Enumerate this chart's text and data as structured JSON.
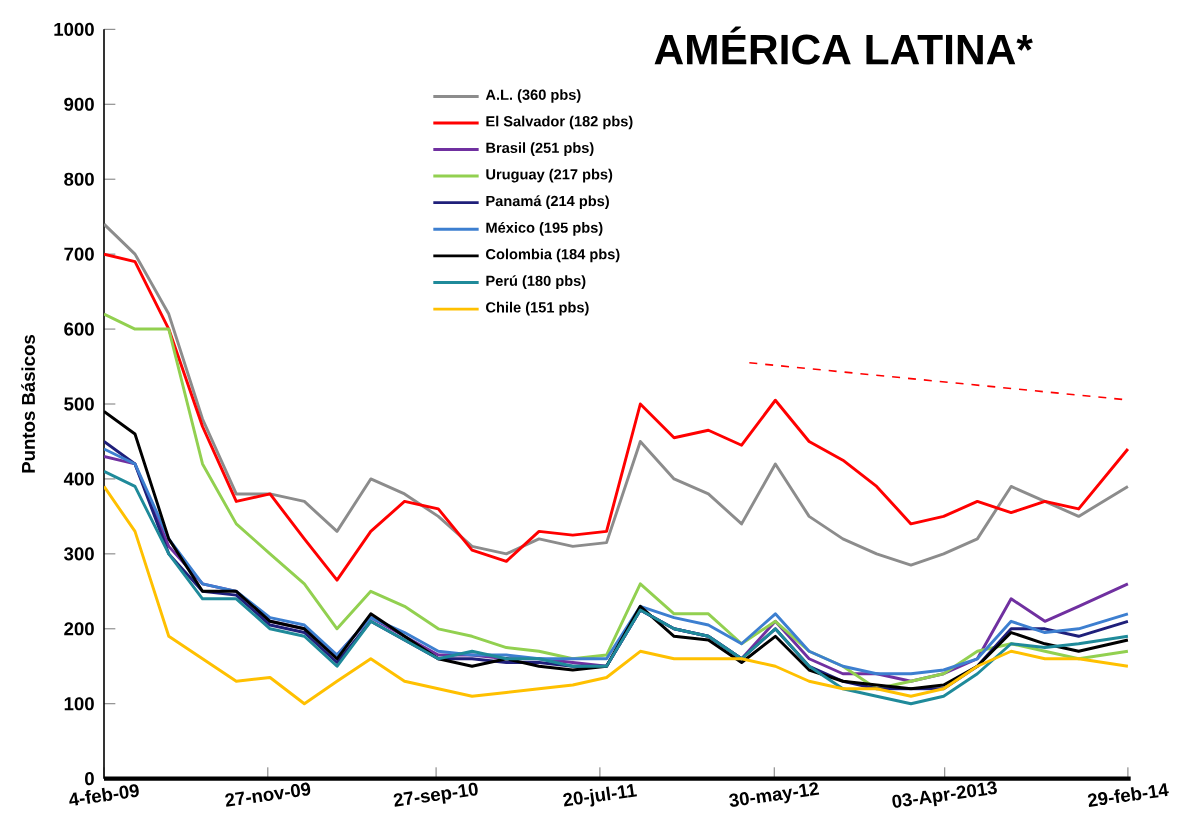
{
  "chart_data": {
    "type": "line",
    "title": "AMÉRICA LATINA*",
    "ylabel": "Puntos Básicos",
    "x": [
      "2009-02-04",
      "2009-04-01",
      "2009-06-01",
      "2009-08-01",
      "2009-10-01",
      "2009-12-01",
      "2010-02-01",
      "2010-04-01",
      "2010-06-01",
      "2010-08-01",
      "2010-10-01",
      "2010-12-01",
      "2011-02-01",
      "2011-04-01",
      "2011-06-01",
      "2011-08-01",
      "2011-10-01",
      "2011-12-01",
      "2012-02-01",
      "2012-04-01",
      "2012-06-01",
      "2012-08-01",
      "2012-10-01",
      "2012-12-01",
      "2013-02-01",
      "2013-04-01",
      "2013-06-01",
      "2013-08-01",
      "2013-10-01",
      "2013-12-01",
      "2014-02-28"
    ],
    "series": [
      {
        "name": "A.L. (360 pbs)",
        "color": "#8c8c8c",
        "values": [
          740,
          700,
          620,
          480,
          380,
          380,
          370,
          330,
          400,
          380,
          350,
          310,
          300,
          320,
          310,
          315,
          450,
          400,
          380,
          340,
          420,
          350,
          320,
          300,
          285,
          300,
          320,
          390,
          370,
          350,
          390
        ]
      },
      {
        "name": "El Salvador (182 pbs)",
        "color": "#ff0000",
        "values": [
          700,
          690,
          600,
          470,
          370,
          380,
          320,
          265,
          330,
          370,
          360,
          305,
          290,
          330,
          325,
          330,
          500,
          455,
          465,
          445,
          505,
          450,
          425,
          390,
          340,
          350,
          370,
          355,
          370,
          360,
          440
        ]
      },
      {
        "name": "Brasil (251 pbs)",
        "color": "#7030a0",
        "values": [
          430,
          420,
          310,
          260,
          250,
          210,
          200,
          165,
          215,
          190,
          165,
          165,
          160,
          160,
          155,
          150,
          225,
          200,
          190,
          160,
          210,
          160,
          140,
          140,
          130,
          140,
          160,
          240,
          210,
          230,
          260
        ]
      },
      {
        "name": "Uruguay (217 pbs)",
        "color": "#92d050",
        "values": [
          620,
          600,
          600,
          420,
          340,
          300,
          260,
          200,
          250,
          230,
          200,
          190,
          175,
          170,
          160,
          165,
          260,
          220,
          220,
          180,
          210,
          170,
          150,
          120,
          130,
          140,
          170,
          180,
          170,
          160,
          170
        ]
      },
      {
        "name": "Panamá (214 pbs)",
        "color": "#1f1f7a",
        "values": [
          450,
          420,
          300,
          250,
          245,
          205,
          195,
          155,
          210,
          185,
          160,
          160,
          155,
          155,
          150,
          150,
          225,
          200,
          190,
          160,
          200,
          150,
          130,
          120,
          120,
          120,
          150,
          200,
          200,
          190,
          210
        ]
      },
      {
        "name": "México (195 pbs)",
        "color": "#3d7fd0",
        "values": [
          440,
          420,
          320,
          260,
          250,
          215,
          205,
          165,
          215,
          195,
          170,
          165,
          165,
          160,
          160,
          160,
          230,
          215,
          205,
          180,
          220,
          170,
          150,
          140,
          140,
          145,
          160,
          210,
          195,
          200,
          220
        ]
      },
      {
        "name": "Colombia (184 pbs)",
        "color": "#000000",
        "values": [
          490,
          460,
          320,
          250,
          250,
          210,
          200,
          160,
          220,
          190,
          160,
          150,
          160,
          150,
          145,
          150,
          230,
          190,
          185,
          155,
          190,
          145,
          130,
          125,
          120,
          125,
          150,
          195,
          180,
          170,
          185
        ]
      },
      {
        "name": "Perú (180 pbs)",
        "color": "#1f8a9a",
        "values": [
          410,
          390,
          300,
          240,
          240,
          200,
          190,
          150,
          210,
          185,
          160,
          170,
          160,
          160,
          150,
          150,
          225,
          200,
          190,
          160,
          200,
          150,
          120,
          110,
          100,
          110,
          140,
          180,
          175,
          180,
          190
        ]
      },
      {
        "name": "Chile (151 pbs)",
        "color": "#ffc000",
        "values": [
          390,
          330,
          190,
          160,
          130,
          135,
          100,
          130,
          160,
          130,
          120,
          110,
          115,
          120,
          125,
          135,
          170,
          160,
          160,
          160,
          150,
          130,
          120,
          120,
          110,
          120,
          150,
          170,
          160,
          160,
          150
        ]
      },
      {
        "color": "#ff0000",
        "line_style": "dashed",
        "x": [
          "2012-04-15",
          "2014-02-20"
        ],
        "values": [
          555,
          506
        ]
      }
    ],
    "xlim": [
      "2009-02-04",
      "2014-03-05"
    ],
    "xticks": [
      {
        "value": "2009-02-04",
        "label": "4-feb-09"
      },
      {
        "value": "2009-11-27",
        "label": "27-nov-09"
      },
      {
        "value": "2010-09-27",
        "label": "27-sep-10"
      },
      {
        "value": "2011-07-20",
        "label": "20-jul-11"
      },
      {
        "value": "2012-05-30",
        "label": "30-may-12"
      },
      {
        "value": "2013-04-03",
        "label": "03-Apr-2013"
      },
      {
        "value": "2014-02-28",
        "label": "29-feb-14"
      }
    ],
    "ylim": [
      0,
      1000
    ],
    "yticks": [
      0,
      100,
      200,
      300,
      400,
      500,
      600,
      700,
      800,
      900,
      1000
    ],
    "grid": false,
    "legend": "top",
    "marker": "none",
    "line_style": "solid"
  }
}
